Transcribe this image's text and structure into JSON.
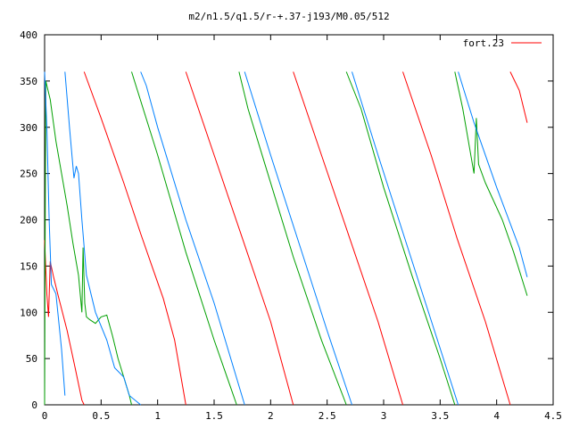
{
  "chart_data": {
    "type": "line",
    "title": "m2/n1.5/q1.5/r-+.37-j193/M0.05/512",
    "xlabel": "",
    "ylabel": "",
    "xlim": [
      0,
      4.5
    ],
    "ylim": [
      0,
      400
    ],
    "xticks": [
      0,
      0.5,
      1,
      1.5,
      2,
      2.5,
      3,
      3.5,
      4,
      4.5
    ],
    "yticks": [
      0,
      50,
      100,
      150,
      200,
      250,
      300,
      350,
      400
    ],
    "xtick_labels": [
      "0",
      "0.5",
      "1",
      "1.5",
      "2",
      "2.5",
      "3",
      "3.5",
      "4",
      "4.5"
    ],
    "ytick_labels": [
      "0",
      "50",
      "100",
      "150",
      "200",
      "250",
      "300",
      "350",
      "400"
    ],
    "grid": false,
    "legend": {
      "position": "top-right",
      "entries": [
        "fort.23"
      ]
    },
    "series": [
      {
        "name": "fort.23",
        "color": "#ff0000",
        "segments": [
          [
            [
              0.0,
              178
            ],
            [
              0.02,
              120
            ],
            [
              0.035,
              95
            ],
            [
              0.05,
              155
            ],
            [
              0.08,
              138
            ],
            [
              0.12,
              118
            ],
            [
              0.2,
              80
            ],
            [
              0.27,
              40
            ],
            [
              0.33,
              5
            ],
            [
              0.35,
              0
            ]
          ],
          [
            [
              0.35,
              360
            ],
            [
              0.5,
              310
            ],
            [
              0.7,
              240
            ],
            [
              0.85,
              185
            ],
            [
              0.95,
              150
            ],
            [
              1.05,
              115
            ],
            [
              1.15,
              70
            ],
            [
              1.25,
              0
            ]
          ],
          [
            [
              1.25,
              360
            ],
            [
              1.5,
              270
            ],
            [
              1.75,
              180
            ],
            [
              2.0,
              90
            ],
            [
              2.2,
              0
            ]
          ],
          [
            [
              2.2,
              360
            ],
            [
              2.45,
              270
            ],
            [
              2.7,
              180
            ],
            [
              2.95,
              90
            ],
            [
              3.17,
              0
            ]
          ],
          [
            [
              3.17,
              360
            ],
            [
              3.42,
              270
            ],
            [
              3.65,
              180
            ],
            [
              3.9,
              90
            ],
            [
              4.12,
              0
            ]
          ],
          [
            [
              4.12,
              360
            ],
            [
              4.2,
              340
            ],
            [
              4.27,
              305
            ]
          ]
        ]
      },
      {
        "name": "",
        "color": "#00a000",
        "segments": [
          [
            [
              0.0,
              0
            ],
            [
              0.005,
              180
            ],
            [
              0.01,
              350
            ],
            [
              0.05,
              330
            ],
            [
              0.1,
              285
            ],
            [
              0.15,
              250
            ],
            [
              0.2,
              215
            ],
            [
              0.25,
              175
            ],
            [
              0.3,
              140
            ],
            [
              0.33,
              100
            ],
            [
              0.34,
              170
            ],
            [
              0.355,
              110
            ],
            [
              0.37,
              95
            ],
            [
              0.4,
              92
            ],
            [
              0.45,
              88
            ],
            [
              0.5,
              95
            ],
            [
              0.55,
              97
            ],
            [
              0.6,
              75
            ],
            [
              0.65,
              50
            ],
            [
              0.7,
              30
            ],
            [
              0.75,
              10
            ],
            [
              0.77,
              0
            ]
          ],
          [
            [
              0.77,
              360
            ],
            [
              1.0,
              270
            ],
            [
              1.25,
              165
            ],
            [
              1.5,
              70
            ],
            [
              1.7,
              0
            ]
          ],
          [
            [
              1.72,
              360
            ],
            [
              1.8,
              320
            ],
            [
              1.95,
              260
            ],
            [
              2.2,
              160
            ],
            [
              2.45,
              70
            ],
            [
              2.67,
              0
            ]
          ],
          [
            [
              2.67,
              360
            ],
            [
              2.8,
              320
            ],
            [
              3.0,
              235
            ],
            [
              3.25,
              140
            ],
            [
              3.5,
              50
            ],
            [
              3.63,
              0
            ]
          ],
          [
            [
              3.63,
              360
            ],
            [
              3.7,
              320
            ],
            [
              3.8,
              250
            ],
            [
              3.82,
              310
            ],
            [
              3.84,
              260
            ],
            [
              3.9,
              240
            ],
            [
              4.05,
              200
            ],
            [
              4.15,
              165
            ],
            [
              4.27,
              118
            ]
          ]
        ]
      },
      {
        "name": "",
        "color": "#0080ff",
        "segments": [
          [
            [
              0.0,
              360
            ],
            [
              0.02,
              300
            ],
            [
              0.04,
              200
            ],
            [
              0.06,
              130
            ],
            [
              0.1,
              120
            ],
            [
              0.15,
              60
            ],
            [
              0.18,
              10
            ]
          ],
          [
            [
              0.18,
              360
            ],
            [
              0.22,
              300
            ],
            [
              0.26,
              245
            ],
            [
              0.28,
              258
            ],
            [
              0.3,
              250
            ],
            [
              0.33,
              200
            ],
            [
              0.37,
              140
            ],
            [
              0.45,
              100
            ],
            [
              0.55,
              70
            ],
            [
              0.62,
              40
            ],
            [
              0.7,
              30
            ],
            [
              0.75,
              10
            ],
            [
              0.85,
              0
            ]
          ],
          [
            [
              0.85,
              360
            ],
            [
              0.9,
              345
            ],
            [
              1.0,
              300
            ],
            [
              1.25,
              200
            ],
            [
              1.5,
              110
            ],
            [
              1.77,
              0
            ]
          ],
          [
            [
              1.77,
              360
            ],
            [
              2.0,
              270
            ],
            [
              2.25,
              175
            ],
            [
              2.5,
              80
            ],
            [
              2.72,
              0
            ]
          ],
          [
            [
              2.72,
              360
            ],
            [
              2.95,
              270
            ],
            [
              3.2,
              175
            ],
            [
              3.45,
              80
            ],
            [
              3.66,
              0
            ]
          ],
          [
            [
              3.66,
              360
            ],
            [
              3.8,
              305
            ],
            [
              4.0,
              235
            ],
            [
              4.2,
              170
            ],
            [
              4.27,
              138
            ]
          ]
        ]
      }
    ]
  }
}
